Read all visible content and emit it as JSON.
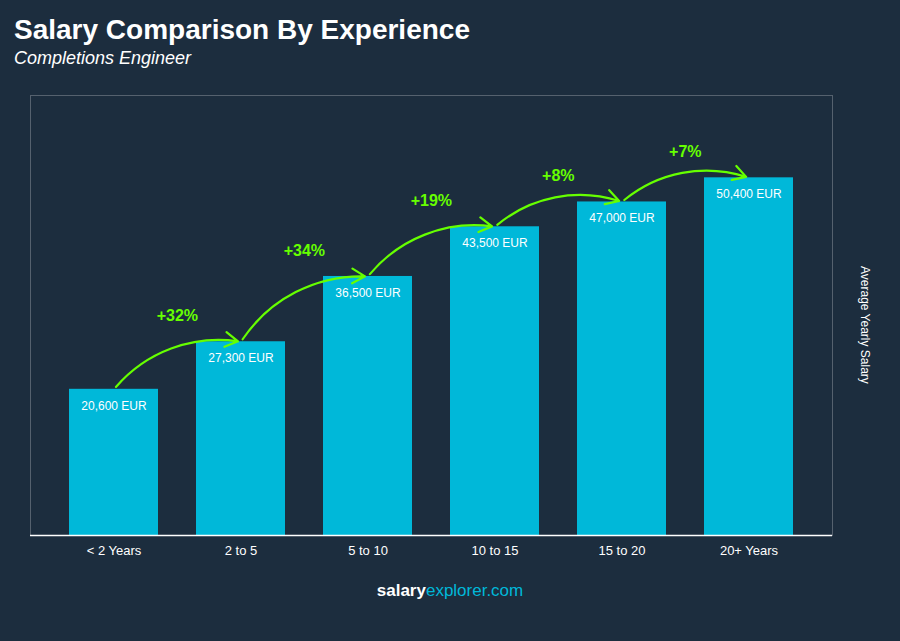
{
  "chart_data": {
    "type": "bar",
    "title": "Salary Comparison By Experience",
    "subtitle": "Completions Engineer",
    "ylabel": "Average Yearly Salary",
    "categories": [
      "< 2 Years",
      "2 to 5",
      "5 to 10",
      "10 to 15",
      "15 to 20",
      "20+ Years"
    ],
    "values": [
      20600,
      27300,
      36500,
      43500,
      47000,
      50400
    ],
    "value_labels": [
      "20,600 EUR",
      "27,300 EUR",
      "36,500 EUR",
      "43,500 EUR",
      "47,000 EUR",
      "50,400 EUR"
    ],
    "data_labels": true,
    "color": "#00b8d9",
    "ylim": [
      0,
      62000
    ],
    "tick_labels": "x",
    "grid": false,
    "annotations": [
      {
        "text": "+32%",
        "color": "#66ff00"
      },
      {
        "text": "+34%",
        "color": "#66ff00"
      },
      {
        "text": "+19%",
        "color": "#66ff00"
      },
      {
        "text": "+8%",
        "color": "#66ff00"
      },
      {
        "text": "+7%",
        "color": "#66ff00"
      }
    ],
    "footer": [
      {
        "text": "salary",
        "color": "#ffffff"
      },
      {
        "text": "explorer.com",
        "color": "#00b8d9"
      }
    ]
  }
}
